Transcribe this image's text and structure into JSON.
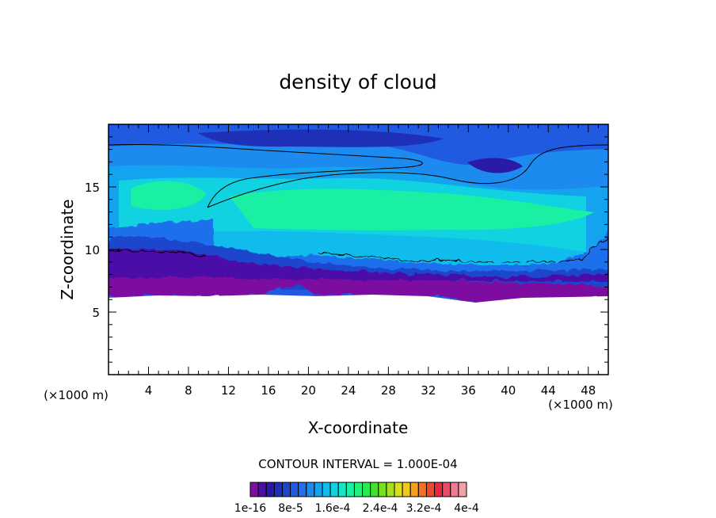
{
  "chart_data": {
    "type": "heatmap",
    "title": "density of cloud",
    "xlabel": "X-coordinate",
    "ylabel": "Z-coordinate",
    "x_unit": "(×1000 m)",
    "z_unit": "(×1000 m)",
    "xlim": [
      0,
      50
    ],
    "ylim": [
      0,
      20
    ],
    "x_ticks": [
      "4",
      "8",
      "12",
      "16",
      "20",
      "24",
      "28",
      "32",
      "36",
      "40",
      "44",
      "48"
    ],
    "y_ticks": [
      "5",
      "10",
      "15"
    ],
    "contour_interval_label": "CONTOUR INTERVAL = 1.000E-04",
    "colorbar": {
      "colors": [
        "#7d0fa0",
        "#4b0fa8",
        "#2a1aa8",
        "#1e30b8",
        "#1e46cc",
        "#1f5ae0",
        "#1f70ec",
        "#1d8aef",
        "#14a4ef",
        "#10bcec",
        "#10d2e0",
        "#14e6c6",
        "#1af0a4",
        "#22ef7c",
        "#2aea50",
        "#44e02c",
        "#78e020",
        "#a8e01c",
        "#d8e01c",
        "#f0c81a",
        "#f4a01c",
        "#f47020",
        "#ef4828",
        "#e8283a",
        "#ec4a66",
        "#f07a90",
        "#f4a0a8"
      ],
      "tick_labels": [
        "1e-16",
        "8e-5",
        "1.6e-4",
        "2.4e-4",
        "3.2e-4",
        "4e-4"
      ]
    }
  }
}
